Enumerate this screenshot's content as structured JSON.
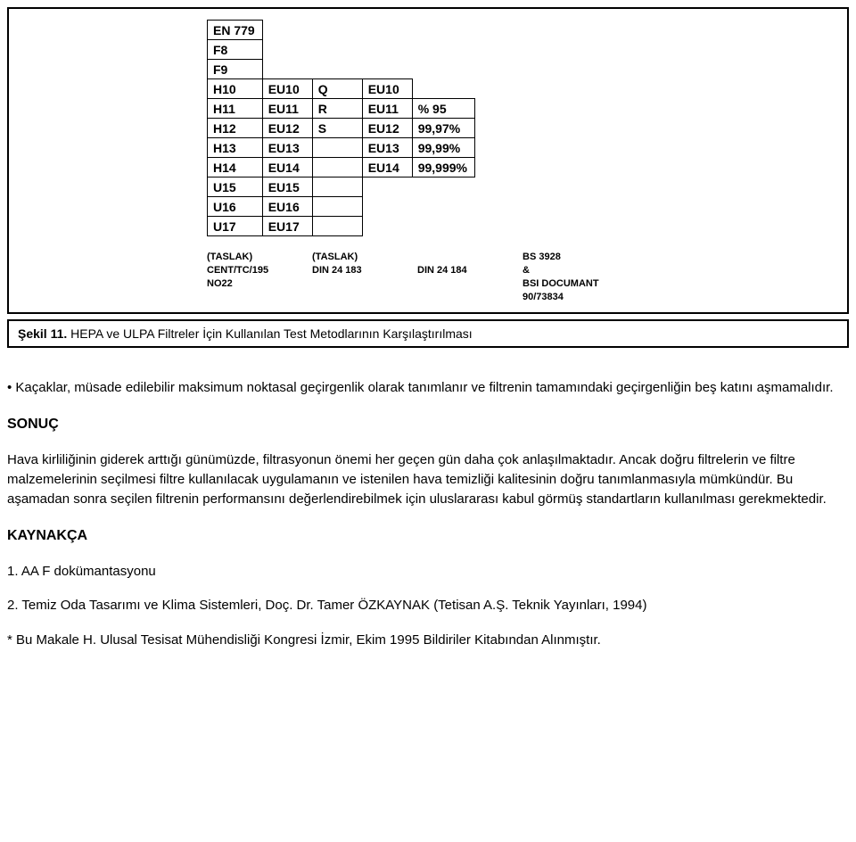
{
  "table": {
    "rows": [
      [
        "EN 779",
        "",
        "",
        "",
        ""
      ],
      [
        "F8",
        "",
        "",
        "",
        ""
      ],
      [
        "F9",
        "",
        "",
        "",
        ""
      ],
      [
        "H10",
        "EU10",
        "Q",
        "EU10",
        ""
      ],
      [
        "H11",
        "EU11",
        "R",
        "EU11",
        "% 95"
      ],
      [
        "H12",
        "EU12",
        "S",
        "EU12",
        "99,97%"
      ],
      [
        "H13",
        "EU13",
        "",
        "EU13",
        "99,99%"
      ],
      [
        "H14",
        "EU14",
        "",
        "EU14",
        "99,999%"
      ],
      [
        "U15",
        "EU15",
        "",
        "",
        ""
      ],
      [
        "U16",
        "EU16",
        "",
        "",
        ""
      ],
      [
        "U17",
        "EU17",
        "",
        "",
        ""
      ]
    ],
    "present": [
      [
        1,
        0,
        0,
        0,
        0
      ],
      [
        1,
        0,
        0,
        0,
        0
      ],
      [
        1,
        0,
        0,
        0,
        0
      ],
      [
        1,
        1,
        1,
        1,
        0
      ],
      [
        1,
        1,
        1,
        1,
        1
      ],
      [
        1,
        1,
        1,
        1,
        1
      ],
      [
        1,
        1,
        1,
        1,
        1
      ],
      [
        1,
        1,
        1,
        1,
        1
      ],
      [
        1,
        1,
        1,
        0,
        0
      ],
      [
        1,
        1,
        1,
        0,
        0
      ],
      [
        1,
        1,
        1,
        0,
        0
      ]
    ]
  },
  "footnotes": {
    "c1": "(TASLAK)\nCENT/TC/195\nNO22",
    "c2": "(TASLAK)\nDIN 24 183",
    "c3": "\nDIN 24 184",
    "c4": "BS 3928\n&\nBSI DOCUMANT\n90/73834"
  },
  "caption": {
    "lead": "Şekil 11.",
    "text": " HEPA ve ULPA Filtreler İçin Kullanılan Test Metodlarının Karşılaştırılması"
  },
  "paragraphs": {
    "p1": "Kaçaklar, müsade edilebilir maksimum noktasal geçirgenlik olarak tanımlanır ve filtrenin tamamındaki geçirgenliğin beş katını aşmamalıdır.",
    "sonuc_title": "SONUÇ",
    "p2": "Hava kirliliğinin giderek arttığı günümüzde, filtrasyonun önemi her geçen gün daha çok anlaşılmaktadır. Ancak doğru filtrelerin ve filtre malzemelerinin seçilmesi filtre kullanılacak uygulamanın ve istenilen hava temizliği kalitesinin doğru tanımlanmasıyla mümkündür. Bu aşamadan sonra seçilen filtrenin performansını değerlendirebilmek için uluslararası kabul görmüş standartların kullanılması gerekmektedir.",
    "kaynakca_title": "KAYNAKÇA",
    "k1": "1. AA F dokümantasyonu",
    "k2": "2. Temiz Oda Tasarımı ve Klima Sistemleri, Doç. Dr. Tamer ÖZKAYNAK (Tetisan A.Ş. Teknik Yayınları, 1994)",
    "k3": "* Bu Makale H. Ulusal Tesisat Mühendisliği Kongresi İzmir, Ekim 1995 Bildiriler Kitabından Alınmıştır."
  }
}
